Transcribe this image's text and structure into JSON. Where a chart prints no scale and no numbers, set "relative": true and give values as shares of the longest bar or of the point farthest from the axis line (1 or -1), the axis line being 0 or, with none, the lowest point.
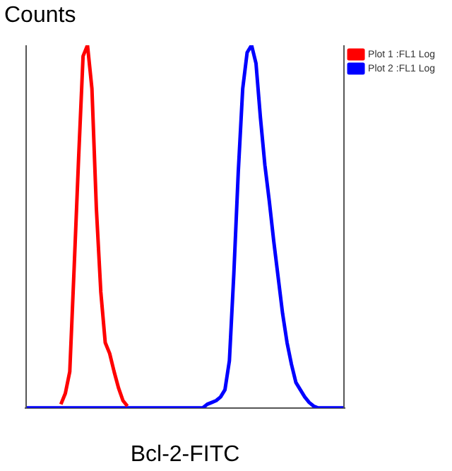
{
  "chart_data": {
    "type": "line",
    "relative": true,
    "ylabel": "Counts",
    "xlabel": "Bcl-2-FITC",
    "legend": "top right",
    "grid": false,
    "marker": "none",
    "categories": [
      null,
      null,
      null,
      null,
      null,
      null,
      null,
      null,
      null,
      null,
      null,
      null,
      null,
      null,
      null,
      null,
      null,
      null,
      null,
      null,
      null,
      null,
      null,
      null,
      null,
      null,
      null,
      null,
      null,
      null,
      null,
      null,
      null,
      null,
      null,
      null,
      null,
      null,
      null,
      null,
      null,
      null,
      null,
      null,
      null,
      null,
      null,
      null,
      null,
      null,
      null,
      null,
      null,
      null,
      null,
      null,
      null,
      null,
      null,
      null,
      null,
      null,
      null,
      null,
      null,
      null,
      null,
      null,
      null,
      null,
      null,
      null,
      null
    ],
    "series": [
      {
        "name": "Plot 1 :FL1 Log",
        "color": "#ff0000",
        "values": [
          null,
          null,
          null,
          null,
          null,
          null,
          null,
          null,
          0.01,
          0.04,
          0.1,
          0.39,
          0.69,
          0.97,
          1,
          0.88,
          0.55,
          0.32,
          0.18,
          0.15,
          0.1,
          0.055,
          0.02,
          0.005,
          null,
          null,
          null,
          null,
          null,
          null,
          null,
          null,
          null,
          null,
          null,
          null,
          null,
          null,
          null,
          null,
          null,
          null,
          null,
          null,
          null,
          null,
          null,
          null,
          null,
          null,
          null,
          null,
          null,
          null,
          null,
          null,
          null,
          null,
          null,
          null,
          null,
          null,
          null,
          null,
          null,
          null,
          null,
          null,
          null,
          null,
          null,
          null,
          null
        ]
      },
      {
        "name": "Plot 2 :FL1 Log",
        "color": "#0000ff",
        "values": [
          0,
          0,
          0,
          0,
          0,
          0,
          0,
          0,
          0,
          0,
          0,
          0,
          0,
          0,
          0,
          0,
          0,
          0,
          0,
          0,
          0,
          0,
          0,
          0,
          0,
          0,
          0,
          0,
          0,
          0,
          0,
          0,
          0,
          0,
          0,
          0,
          0,
          0,
          0,
          0,
          0,
          0.01,
          0.015,
          0.02,
          0.03,
          0.05,
          0.13,
          0.37,
          0.65,
          0.88,
          0.98,
          1,
          0.95,
          0.8,
          0.67,
          0.57,
          0.46,
          0.36,
          0.26,
          0.18,
          0.12,
          0.07,
          0.05,
          0.03,
          0.015,
          0.005,
          0,
          0,
          0,
          0,
          0,
          0,
          0
        ]
      }
    ]
  }
}
